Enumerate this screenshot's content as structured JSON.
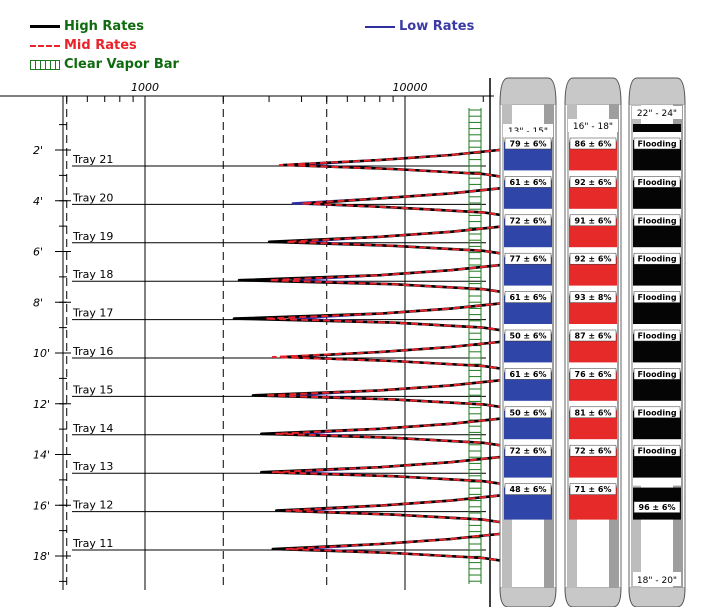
{
  "legend": {
    "high": "High Rates",
    "mid": "Mid Rates",
    "clear": "Clear Vapor Bar",
    "low": "Low Rates"
  },
  "colors": {
    "high": "#000000",
    "mid": "#e8232a",
    "low": "#2e2e9e",
    "clear": "#1e7a1e",
    "legend_text_green": "#0f6b0f",
    "legend_text_red": "#e8232a",
    "legend_text_blue": "#3a3aa6",
    "scan_blue": "#2f45a8",
    "scan_red": "#e62a2a",
    "scan_black": "#050505"
  },
  "chart_data": {
    "type": "line",
    "title": "",
    "xlabel": "",
    "ylabel": "",
    "x_scale": "log",
    "x_ticks": [
      "1000",
      "10000"
    ],
    "y_ticks": [
      "2'",
      "4'",
      "6'",
      "8'",
      "10'",
      "12'",
      "14'",
      "16'",
      "18'"
    ],
    "y_values_ft": [
      2,
      4,
      6,
      8,
      10,
      12,
      14,
      16,
      18
    ],
    "trays": [
      "Tray 21",
      "Tray 20",
      "Tray 19",
      "Tray 18",
      "Tray 17",
      "Tray 16",
      "Tray 15",
      "Tray 14",
      "Tray 13",
      "Tray 12",
      "Tray 11"
    ],
    "series": [
      {
        "name": "High Rates",
        "min_x": [
          3400,
          4200,
          3000,
          2300,
          2200,
          3400,
          2600,
          2800,
          2800,
          3200,
          3100
        ]
      },
      {
        "name": "Mid Rates",
        "min_x": [
          3300,
          4000,
          3500,
          3000,
          2900,
          3100,
          2900,
          3200,
          3100,
          3500,
          3500
        ]
      },
      {
        "name": "Low Rates",
        "min_x": [
          3900,
          3700,
          4000,
          3700,
          3600,
          3600,
          3600,
          3800,
          3700,
          3900,
          4000
        ]
      }
    ],
    "clear_vapor_bar": "present"
  },
  "scans": [
    {
      "top_label": "13\" - 15\"",
      "bottom_label": "",
      "values": [
        "79 ± 6%",
        "61 ± 6%",
        "72 ± 6%",
        "77 ± 6%",
        "61 ± 6%",
        "50 ± 6%",
        "61 ± 6%",
        "50 ± 6%",
        "72 ± 6%",
        "48 ± 6%"
      ]
    },
    {
      "top_label": "16\" - 18\"",
      "bottom_label": "",
      "values": [
        "86 ± 6%",
        "92 ± 6%",
        "91 ± 6%",
        "92 ± 6%",
        "93 ± 8%",
        "87 ± 6%",
        "76 ± 6%",
        "81 ± 6%",
        "72 ± 6%",
        "71 ± 6%"
      ]
    },
    {
      "top_label": "22\" - 24\"",
      "bottom_label": "18\" - 20\"",
      "values": [
        "Flooding",
        "Flooding",
        "Flooding",
        "Flooding",
        "Flooding",
        "Flooding",
        "Flooding",
        "Flooding",
        "Flooding",
        "96 ± 6%"
      ]
    }
  ]
}
